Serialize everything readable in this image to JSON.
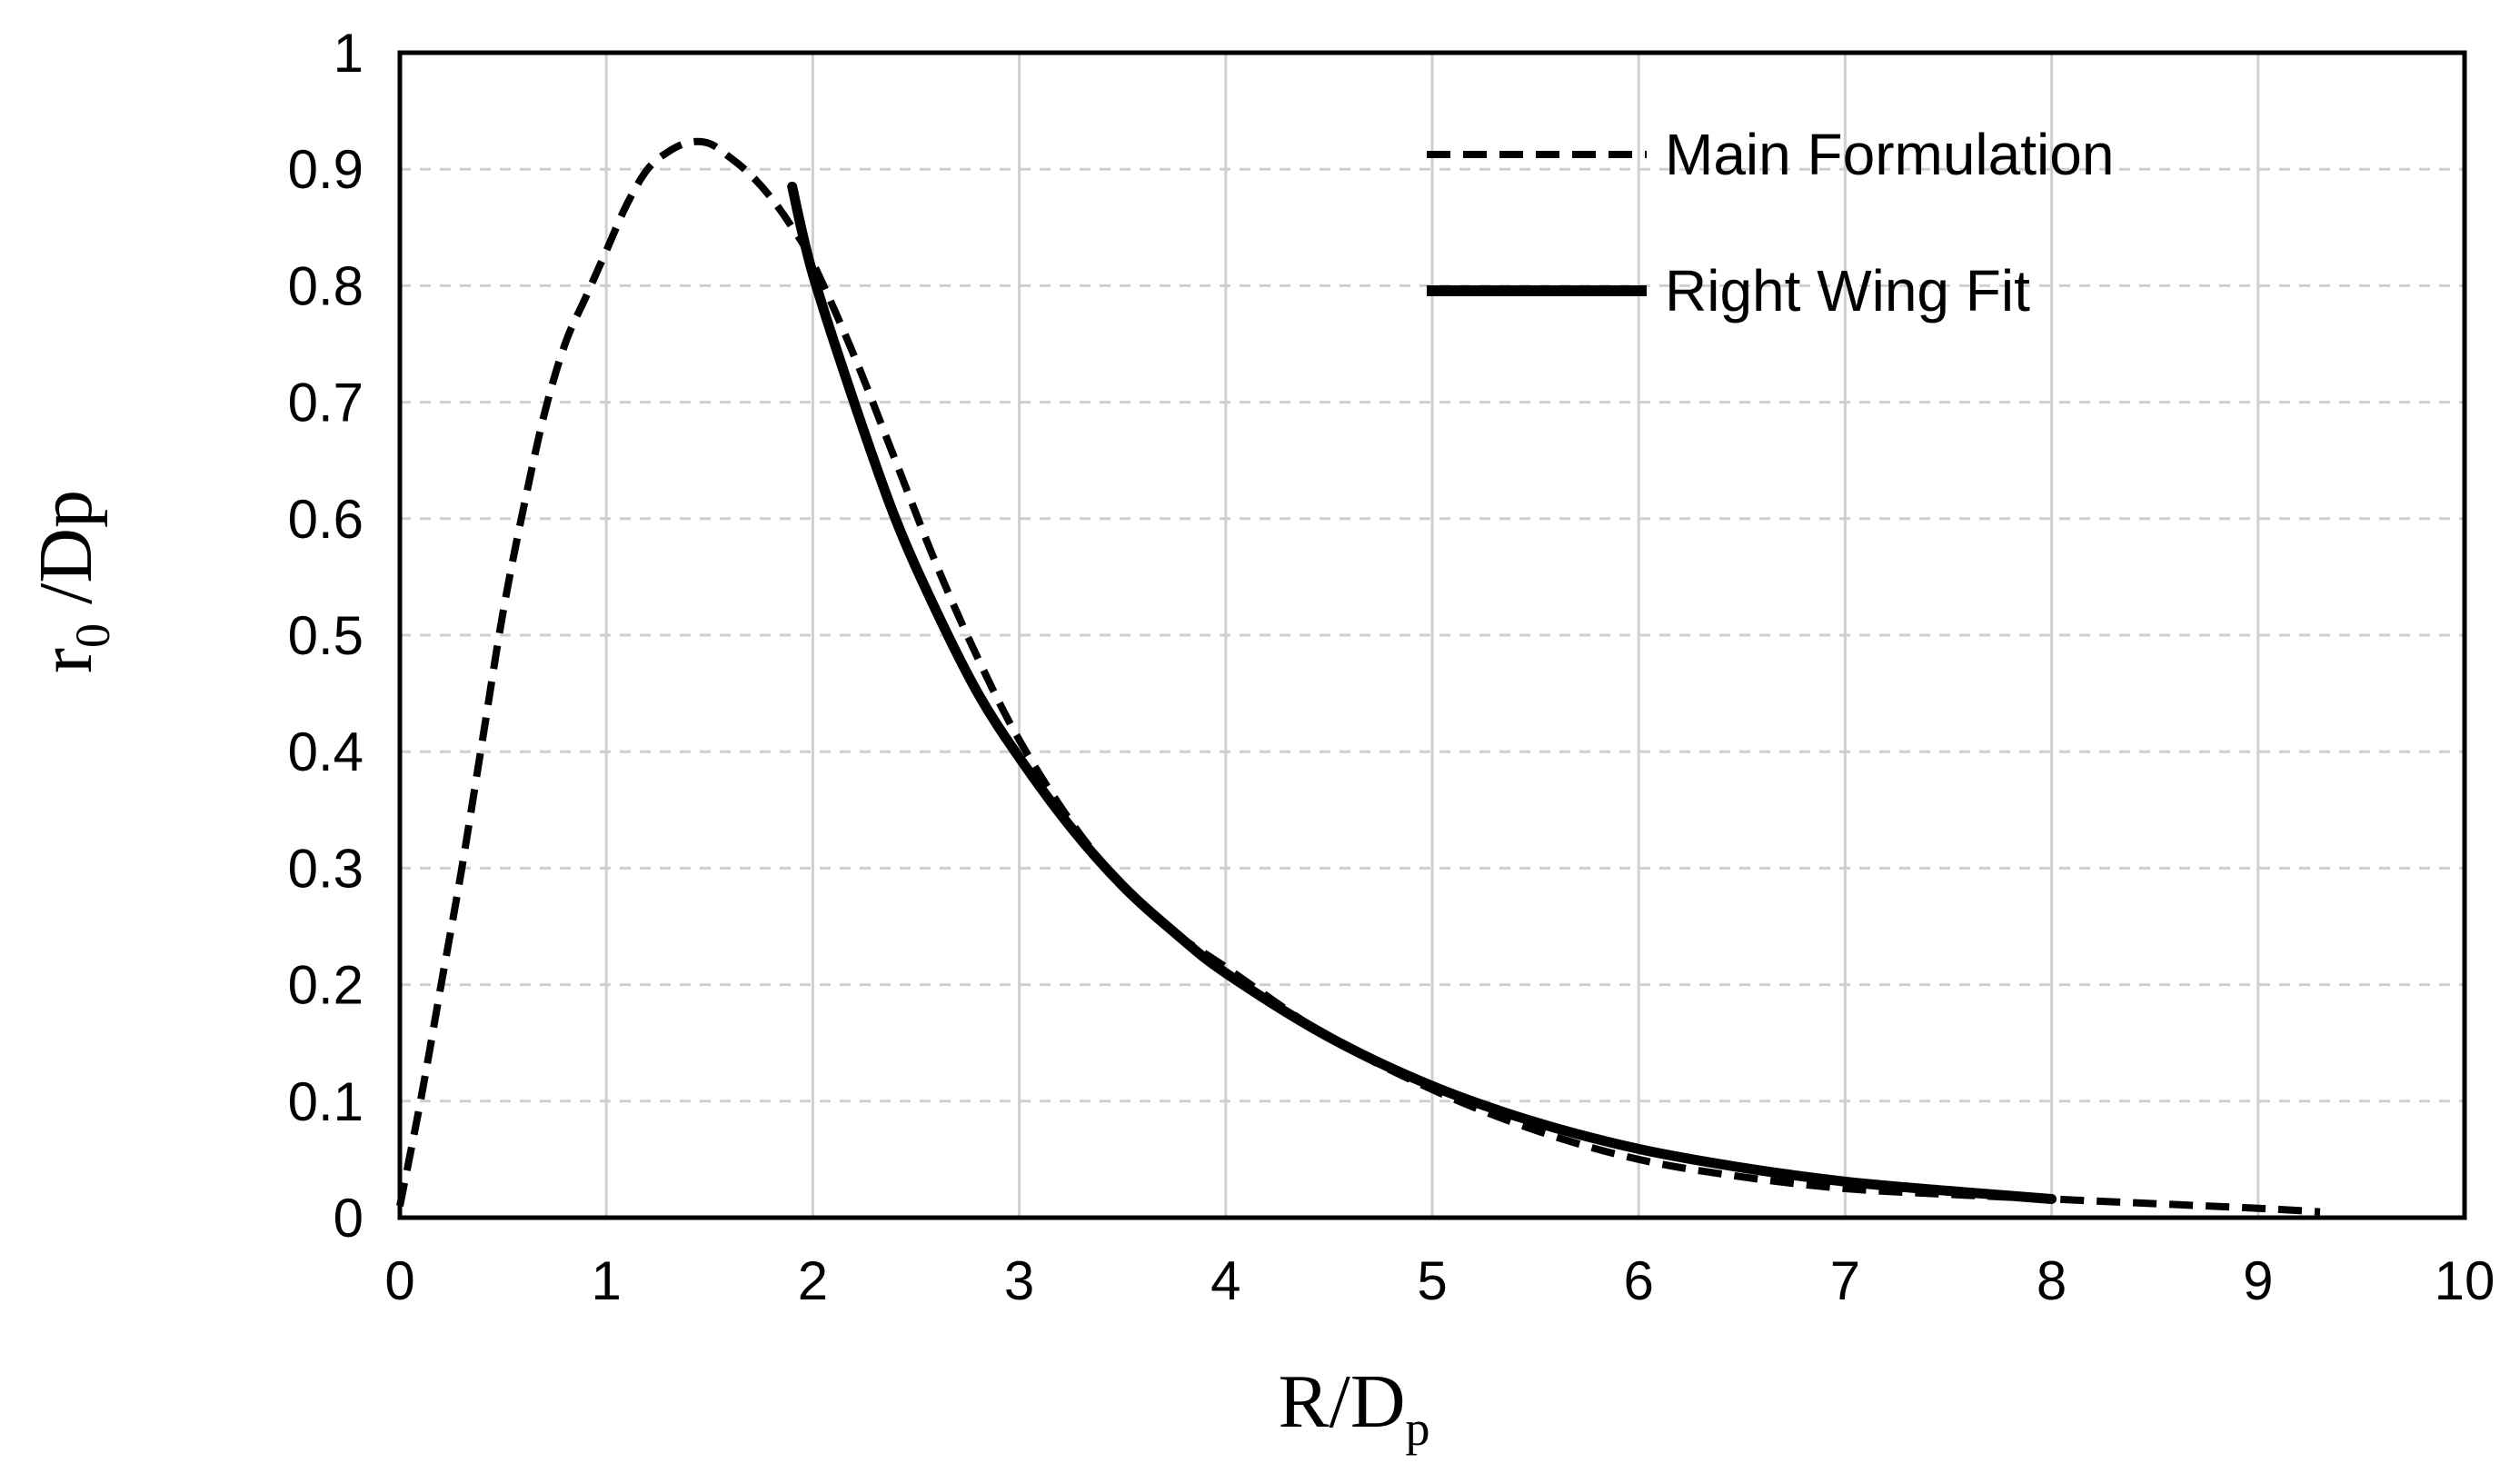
{
  "chart_data": {
    "type": "line",
    "xlabel_main": "R/D",
    "xlabel_sub": "p",
    "ylabel_main": "r",
    "ylabel_sub": "0",
    "ylabel_rest": " /Dp",
    "xlim": [
      0,
      10
    ],
    "ylim": [
      0,
      1
    ],
    "x_ticks": [
      "0",
      "1",
      "2",
      "3",
      "4",
      "5",
      "6",
      "7",
      "8",
      "9",
      "10"
    ],
    "y_ticks": [
      "0",
      "0.1",
      "0.2",
      "0.3",
      "0.4",
      "0.5",
      "0.6",
      "0.7",
      "0.8",
      "0.9",
      "1"
    ],
    "grid": true,
    "legend_position": "top-right",
    "series": [
      {
        "name": "Main Formulation",
        "style": "dashed",
        "color": "#000000",
        "x": [
          0,
          0.1,
          0.2,
          0.3,
          0.4,
          0.5,
          0.6,
          0.7,
          0.8,
          0.9,
          1.0,
          1.1,
          1.2,
          1.3,
          1.4,
          1.5,
          1.6,
          1.7,
          1.8,
          1.9,
          2.0,
          2.2,
          2.4,
          2.6,
          2.8,
          3.0,
          3.25,
          3.5,
          3.75,
          4.0,
          4.5,
          5.0,
          5.5,
          6.0,
          6.5,
          7.0,
          7.5,
          8.0,
          8.5,
          9.0,
          9.3
        ],
        "y": [
          0.01,
          0.1,
          0.2,
          0.3,
          0.41,
          0.52,
          0.61,
          0.69,
          0.75,
          0.79,
          0.83,
          0.87,
          0.9,
          0.915,
          0.923,
          0.922,
          0.91,
          0.895,
          0.875,
          0.85,
          0.82,
          0.74,
          0.65,
          0.56,
          0.48,
          0.41,
          0.34,
          0.285,
          0.245,
          0.215,
          0.155,
          0.11,
          0.075,
          0.05,
          0.035,
          0.025,
          0.02,
          0.016,
          0.012,
          0.008,
          0.005
        ]
      },
      {
        "name": "Right Wing Fit",
        "style": "solid",
        "color": "#000000",
        "x": [
          1.9,
          2.0,
          2.2,
          2.4,
          2.6,
          2.8,
          3.0,
          3.25,
          3.5,
          3.75,
          4.0,
          4.5,
          5.0,
          5.5,
          6.0,
          6.5,
          7.0,
          7.5,
          8.0
        ],
        "y": [
          0.885,
          0.81,
          0.7,
          0.6,
          0.52,
          0.45,
          0.395,
          0.335,
          0.285,
          0.245,
          0.21,
          0.155,
          0.113,
          0.082,
          0.059,
          0.043,
          0.031,
          0.023,
          0.016
        ]
      }
    ]
  }
}
